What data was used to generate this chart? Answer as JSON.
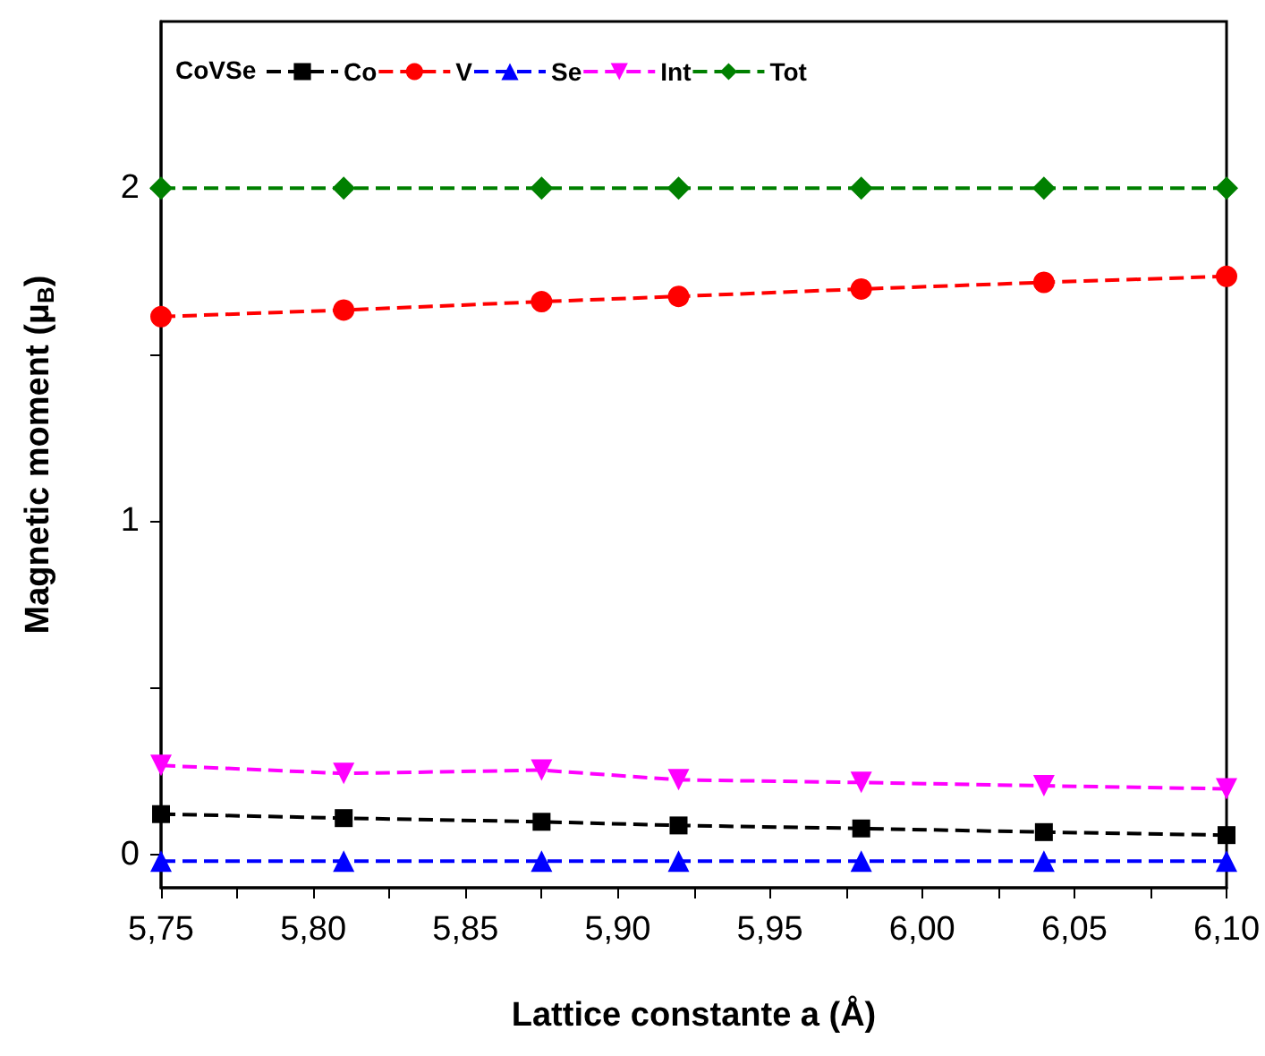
{
  "chart_data": {
    "type": "line",
    "xlabel": "Lattice constante a (Å)",
    "ylabel": "Magnetic moment (μ$_{B}$)",
    "legend_title": "CoVSe",
    "x": [
      5.75,
      5.81,
      5.875,
      5.92,
      5.98,
      6.04,
      6.1
    ],
    "xlim": [
      5.75,
      6.1
    ],
    "xticks": [
      {
        "value": 5.75,
        "label": "5,75"
      },
      {
        "value": 5.775,
        "label": null
      },
      {
        "value": 5.8,
        "label": "5,80"
      },
      {
        "value": 5.825,
        "label": null
      },
      {
        "value": 5.85,
        "label": "5,85"
      },
      {
        "value": 5.875,
        "label": null
      },
      {
        "value": 5.9,
        "label": "5,90"
      },
      {
        "value": 5.925,
        "label": null
      },
      {
        "value": 5.95,
        "label": "5,95"
      },
      {
        "value": 5.975,
        "label": null
      },
      {
        "value": 6.0,
        "label": "6,00"
      },
      {
        "value": 6.025,
        "label": null
      },
      {
        "value": 6.05,
        "label": "6,05"
      },
      {
        "value": 6.075,
        "label": null
      },
      {
        "value": 6.1,
        "label": "6,10"
      }
    ],
    "ylim": [
      -0.1,
      2.5
    ],
    "yticks": [
      0,
      {
        "value": 0.5,
        "label": null
      },
      1,
      {
        "value": 1.5,
        "label": null
      },
      2
    ],
    "grid": false,
    "legend": "top left",
    "line_style": "dashed",
    "series": [
      {
        "name": "Co",
        "color": "#000000",
        "marker": "square",
        "values": [
          0.121,
          0.109,
          0.098,
          0.087,
          0.078,
          0.067,
          0.058
        ]
      },
      {
        "name": "V",
        "color": "#ff0000",
        "marker": "circle",
        "values": [
          1.614,
          1.634,
          1.659,
          1.675,
          1.697,
          1.717,
          1.735
        ]
      },
      {
        "name": "Se",
        "color": "#0000ff",
        "marker": "triangle",
        "values": [
          -0.02,
          -0.02,
          -0.02,
          -0.02,
          -0.02,
          -0.02,
          -0.02
        ]
      },
      {
        "name": "Int",
        "color": "#ff00ff",
        "marker": "triangle_down",
        "values": [
          0.267,
          0.243,
          0.253,
          0.224,
          0.216,
          0.206,
          0.197
        ]
      },
      {
        "name": "Tot",
        "color": "#008000",
        "marker": "diamond",
        "values": [
          2,
          2,
          2,
          2,
          2,
          2,
          2
        ]
      }
    ]
  }
}
